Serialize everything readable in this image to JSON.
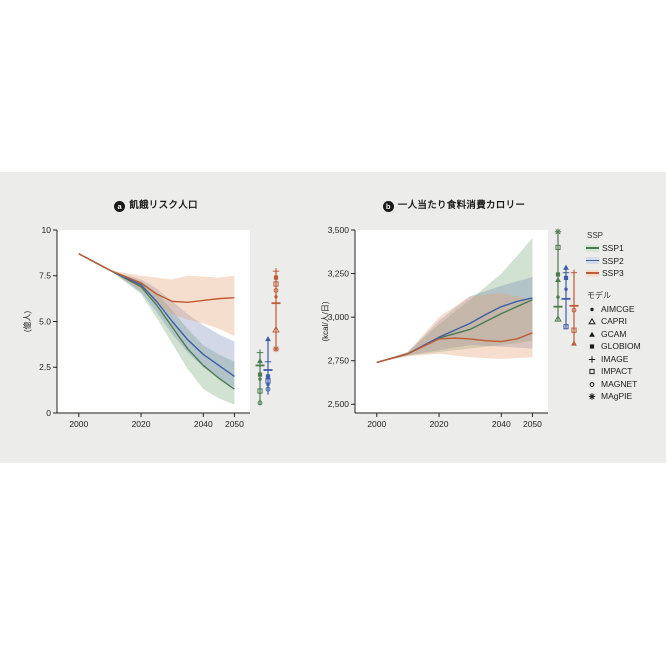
{
  "legend": {
    "ssp_header": "SSP",
    "ssp_items": [
      {
        "label": "SSP1",
        "color": "#4b7b4f",
        "band_solid": "#d9e6d5"
      },
      {
        "label": "SSP2",
        "color": "#3d5da7",
        "band_solid": "#d6dbe9"
      },
      {
        "label": "SSP3",
        "color": "#bf5b35",
        "band_solid": "#f3ddcd"
      }
    ],
    "model_header": "モデル",
    "model_items": [
      {
        "label": "AIMCGE",
        "symbol": "dot"
      },
      {
        "label": "CAPRI",
        "symbol": "tri_open"
      },
      {
        "label": "GCAM",
        "symbol": "tri_filled"
      },
      {
        "label": "GLOBIOM",
        "symbol": "sq_filled"
      },
      {
        "label": "IMAGE",
        "symbol": "plus"
      },
      {
        "label": "IMPACT",
        "symbol": "sq_open"
      },
      {
        "label": "MAGNET",
        "symbol": "circ_open"
      },
      {
        "label": "MAgPIE",
        "symbol": "ast"
      }
    ]
  },
  "chart_data": [
    {
      "type": "line",
      "panel_label": "a",
      "title": "飢餓リスク人口",
      "ylabel": "(億人)",
      "xlim": [
        1993,
        2055
      ],
      "ylim": [
        0,
        10
      ],
      "x_ticks": [
        2000,
        2020,
        2040,
        2050
      ],
      "x_tick_labels": [
        "2000",
        "2020",
        "2040",
        "2050"
      ],
      "y_ticks": [
        0,
        2.5,
        5,
        7.5,
        10
      ],
      "y_tick_labels": [
        "0",
        "2.5",
        "5.0",
        "7.5",
        "10"
      ],
      "x": [
        2000,
        2010,
        2020,
        2025,
        2030,
        2035,
        2040,
        2045,
        2050
      ],
      "series": [
        {
          "name": "SSP1",
          "color": "#4b7b4f",
          "band_color": "rgba(107,158,107,0.30)",
          "values": [
            8.7,
            7.8,
            6.9,
            5.9,
            4.7,
            3.5,
            2.6,
            1.9,
            1.3
          ],
          "lower": [
            8.7,
            7.8,
            6.5,
            5.2,
            3.8,
            2.4,
            1.3,
            0.8,
            0.45
          ],
          "upper": [
            8.7,
            7.8,
            7.2,
            6.6,
            5.6,
            4.6,
            3.7,
            3.2,
            2.8
          ]
        },
        {
          "name": "SSP2",
          "color": "#3d5da7",
          "band_color": "rgba(110,125,180,0.30)",
          "values": [
            8.7,
            7.8,
            7.0,
            6.1,
            5.0,
            4.0,
            3.2,
            2.6,
            2.0
          ],
          "lower": [
            8.7,
            7.8,
            6.6,
            5.5,
            4.3,
            3.3,
            2.5,
            1.9,
            1.4
          ],
          "upper": [
            8.7,
            7.8,
            7.3,
            6.8,
            6.1,
            5.4,
            4.8,
            4.3,
            3.9
          ]
        },
        {
          "name": "SSP3",
          "color": "#bf5b35",
          "band_color": "rgba(230,160,115,0.35)",
          "values": [
            8.7,
            7.8,
            7.1,
            6.5,
            6.1,
            6.05,
            6.15,
            6.25,
            6.3
          ],
          "lower": [
            8.7,
            7.8,
            6.7,
            6.0,
            5.4,
            5.1,
            4.9,
            4.6,
            4.2
          ],
          "upper": [
            8.7,
            7.8,
            7.5,
            7.4,
            7.3,
            7.5,
            7.45,
            7.4,
            7.5
          ]
        }
      ],
      "marker_columns": [
        {
          "ssp": "SSP1",
          "color": "#4b7b4f",
          "range": [
            0.45,
            3.35
          ],
          "markers": [
            {
              "model": "IMAGE",
              "symbol": "plus",
              "value": 3.3
            },
            {
              "model": "GCAM",
              "symbol": "tri_filled",
              "value": 2.85
            },
            {
              "model": "median",
              "symbol": "bar",
              "value": 2.6
            },
            {
              "model": "GLOBIOM",
              "symbol": "sq_filled",
              "value": 2.1
            },
            {
              "model": "AIMCGE",
              "symbol": "dot",
              "value": 1.85
            },
            {
              "model": "IMPACT",
              "symbol": "sq_open",
              "value": 1.2
            },
            {
              "model": "MAGNET",
              "symbol": "circ_open",
              "value": 0.55
            }
          ]
        },
        {
          "ssp": "SSP2",
          "color": "#3d5da7",
          "range": [
            1.0,
            4.1
          ],
          "markers": [
            {
              "model": "GCAM",
              "symbol": "tri_filled",
              "value": 4.05
            },
            {
              "model": "IMAGE",
              "symbol": "plus",
              "value": 2.8
            },
            {
              "model": "median",
              "symbol": "bar",
              "value": 2.35
            },
            {
              "model": "GLOBIOM",
              "symbol": "sq_filled",
              "value": 2.0
            },
            {
              "model": "IMPACT",
              "symbol": "sq_open",
              "value": 1.75
            },
            {
              "model": "AIMCGE",
              "symbol": "dot",
              "value": 1.55
            },
            {
              "model": "MAGNET",
              "symbol": "circ_open",
              "value": 1.3
            }
          ]
        },
        {
          "ssp": "SSP3",
          "color": "#bf5b35",
          "range": [
            3.45,
            7.8
          ],
          "markers": [
            {
              "model": "IMAGE",
              "symbol": "plus",
              "value": 7.75
            },
            {
              "model": "GLOBIOM",
              "symbol": "sq_filled",
              "value": 7.4
            },
            {
              "model": "IMPACT",
              "symbol": "sq_open",
              "value": 7.05
            },
            {
              "model": "MAGNET",
              "symbol": "circ_open",
              "value": 6.7
            },
            {
              "model": "AIMCGE",
              "symbol": "dot",
              "value": 6.35
            },
            {
              "model": "median",
              "symbol": "bar",
              "value": 6.0
            },
            {
              "model": "CAPRI",
              "symbol": "tri_open",
              "value": 4.55
            },
            {
              "model": "MAgPIE",
              "symbol": "ast",
              "value": 3.5
            }
          ]
        }
      ]
    },
    {
      "type": "line",
      "panel_label": "b",
      "title": "一人当たり食料消費カロリー",
      "ylabel": "(kcal/人/日)",
      "xlim": [
        1993,
        2055
      ],
      "ylim": [
        2450,
        3500
      ],
      "x_ticks": [
        2000,
        2020,
        2040,
        2050
      ],
      "x_tick_labels": [
        "2000",
        "2020",
        "2040",
        "2050"
      ],
      "y_ticks": [
        2500,
        2750,
        3000,
        3250,
        3500
      ],
      "y_tick_labels": [
        "2,500",
        "2,750",
        "3,000",
        "3,250",
        "3,500"
      ],
      "x": [
        2000,
        2010,
        2020,
        2025,
        2030,
        2035,
        2040,
        2045,
        2050
      ],
      "series": [
        {
          "name": "SSP1",
          "color": "#4b7b4f",
          "band_color": "rgba(107,158,107,0.30)",
          "values": [
            2740,
            2790,
            2880,
            2905,
            2930,
            2975,
            3020,
            3060,
            3100
          ],
          "lower": [
            2740,
            2780,
            2800,
            2810,
            2820,
            2830,
            2840,
            2850,
            2865
          ],
          "upper": [
            2740,
            2800,
            2960,
            3030,
            3100,
            3175,
            3250,
            3350,
            3455
          ]
        },
        {
          "name": "SSP2",
          "color": "#3d5da7",
          "band_color": "rgba(110,125,180,0.30)",
          "values": [
            2740,
            2790,
            2885,
            2925,
            2965,
            3015,
            3060,
            3090,
            3110
          ],
          "lower": [
            2740,
            2780,
            2810,
            2825,
            2840,
            2835,
            2830,
            2825,
            2820
          ],
          "upper": [
            2740,
            2800,
            2980,
            3050,
            3120,
            3150,
            3180,
            3205,
            3230
          ]
        },
        {
          "name": "SSP3",
          "color": "#bf5b35",
          "band_color": "rgba(230,160,115,0.35)",
          "values": [
            2740,
            2790,
            2875,
            2880,
            2875,
            2865,
            2860,
            2875,
            2910
          ],
          "lower": [
            2740,
            2775,
            2790,
            2780,
            2770,
            2765,
            2760,
            2765,
            2770
          ],
          "upper": [
            2740,
            2800,
            3000,
            3060,
            3120,
            3130,
            3140,
            3120,
            3100
          ]
        }
      ],
      "marker_columns": [
        {
          "ssp": "SSP1",
          "color": "#4b7b4f",
          "range": [
            2975,
            3495
          ],
          "markers": [
            {
              "model": "MAgPIE",
              "symbol": "ast",
              "value": 3490
            },
            {
              "model": "IMPACT",
              "symbol": "sq_open",
              "value": 3400
            },
            {
              "model": "GLOBIOM",
              "symbol": "sq_filled",
              "value": 3245
            },
            {
              "model": "GCAM",
              "symbol": "tri_filled",
              "value": 3215
            },
            {
              "model": "AIMCGE",
              "symbol": "dot",
              "value": 3115
            },
            {
              "model": "median",
              "symbol": "bar",
              "value": 3060
            },
            {
              "model": "CAPRI",
              "symbol": "tri_open",
              "value": 2990
            }
          ]
        },
        {
          "ssp": "SSP2",
          "color": "#3d5da7",
          "range": [
            2935,
            3295
          ],
          "markers": [
            {
              "model": "GCAM",
              "symbol": "tri_filled",
              "value": 3285
            },
            {
              "model": "IMAGE",
              "symbol": "plus",
              "value": 3255
            },
            {
              "model": "GLOBIOM",
              "symbol": "sq_filled",
              "value": 3225
            },
            {
              "model": "AIMCGE",
              "symbol": "dot",
              "value": 3160
            },
            {
              "model": "median",
              "symbol": "bar",
              "value": 3105
            },
            {
              "model": "IMPACT",
              "symbol": "sq_open",
              "value": 2945
            }
          ]
        },
        {
          "ssp": "SSP3",
          "color": "#bf5b35",
          "range": [
            2840,
            3265
          ],
          "markers": [
            {
              "model": "IMAGE",
              "symbol": "plus",
              "value": 3255
            },
            {
              "model": "median",
              "symbol": "bar",
              "value": 3065
            },
            {
              "model": "MAGNET",
              "symbol": "circ_open",
              "value": 3040
            },
            {
              "model": "IMPACT",
              "symbol": "sq_open",
              "value": 2925
            },
            {
              "model": "GCAM",
              "symbol": "tri_filled",
              "value": 2850
            }
          ]
        }
      ]
    }
  ]
}
